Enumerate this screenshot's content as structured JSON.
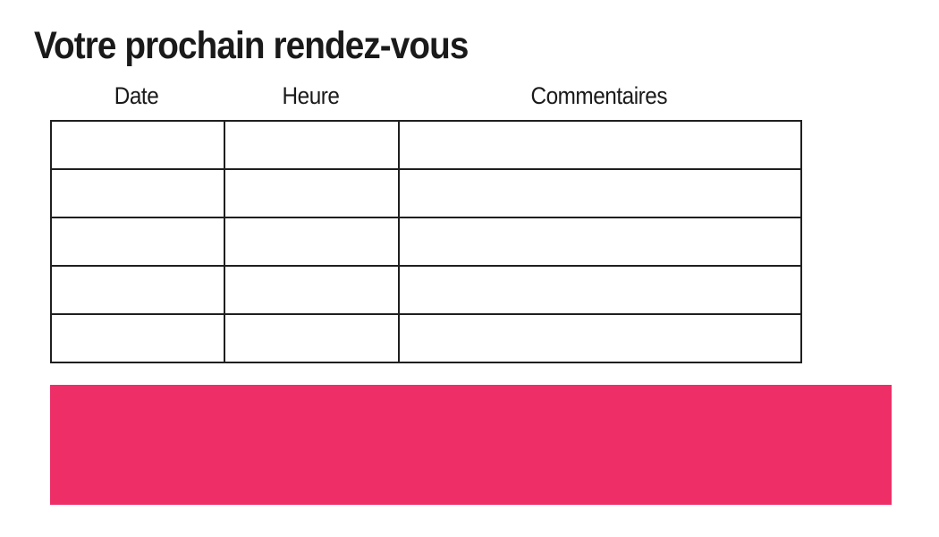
{
  "title": "Votre prochain rendez-vous",
  "table": {
    "headers": [
      "Date",
      "Heure",
      "Commentaires"
    ],
    "rows": [
      [
        "",
        "",
        ""
      ],
      [
        "",
        "",
        ""
      ],
      [
        "",
        "",
        ""
      ],
      [
        "",
        "",
        ""
      ],
      [
        "",
        "",
        ""
      ]
    ]
  },
  "banner": {
    "color": "#ed2e67"
  },
  "colors": {
    "text": "#1a1a1a",
    "border": "#1f1f1f",
    "background": "#ffffff"
  }
}
